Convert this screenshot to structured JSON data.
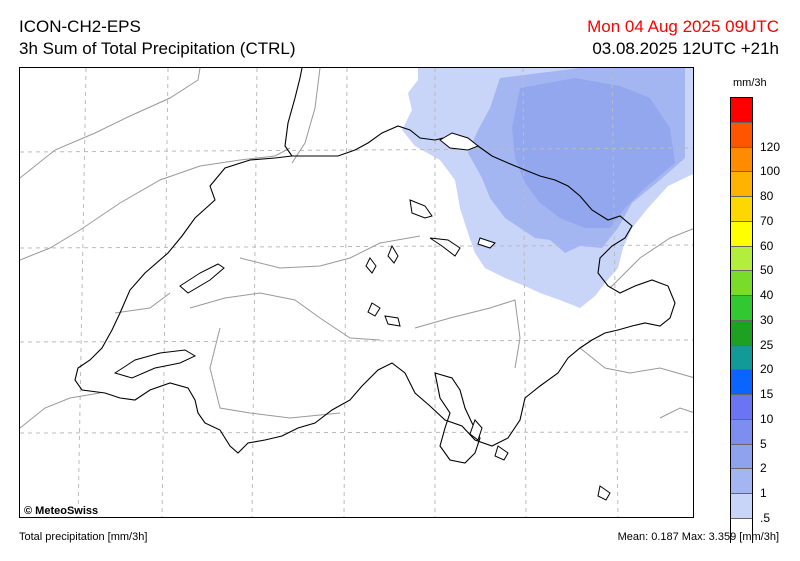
{
  "header": {
    "model": "ICON-CH2-EPS",
    "product": "3h Sum of Total Precipitation (CTRL)",
    "valid_time": "Mon 04 Aug 2025 09UTC",
    "run_time": "03.08.2025 12UTC +21h"
  },
  "map": {
    "copyright": "© MeteoSwiss",
    "colors": {
      "light_blue": "#c8d4f8",
      "medium_blue": "#a4b6f2",
      "dark_blue": "#8ea2ee",
      "border": "#000000",
      "grid": "#bbbbbb",
      "region": "#999999"
    }
  },
  "legend": {
    "unit": "mm/3h",
    "levels": [
      {
        "label": "",
        "color": "#ff0000"
      },
      {
        "label": "120",
        "color": "#ff5500"
      },
      {
        "label": "100",
        "color": "#ff8c00"
      },
      {
        "label": "80",
        "color": "#ffb300"
      },
      {
        "label": "70",
        "color": "#ffd700"
      },
      {
        "label": "60",
        "color": "#ffff00"
      },
      {
        "label": "50",
        "color": "#b4ee3c"
      },
      {
        "label": "40",
        "color": "#7adc2a"
      },
      {
        "label": "30",
        "color": "#32c832"
      },
      {
        "label": "25",
        "color": "#1ea020"
      },
      {
        "label": "20",
        "color": "#129a98"
      },
      {
        "label": "15",
        "color": "#0a64ff"
      },
      {
        "label": "10",
        "color": "#6a74f4"
      },
      {
        "label": "5",
        "color": "#7e8ef0"
      },
      {
        "label": "2",
        "color": "#8ea2ee"
      },
      {
        "label": "1",
        "color": "#a4b6f2"
      },
      {
        "label": ".5",
        "color": "#c8d4f8"
      },
      {
        "label": "",
        "color": "#ffffff"
      }
    ]
  },
  "footer": {
    "variable": "Total precipitation [mm/3h]",
    "stats": "Mean:   0.187 Max:   3.359 [mm/3h]"
  }
}
